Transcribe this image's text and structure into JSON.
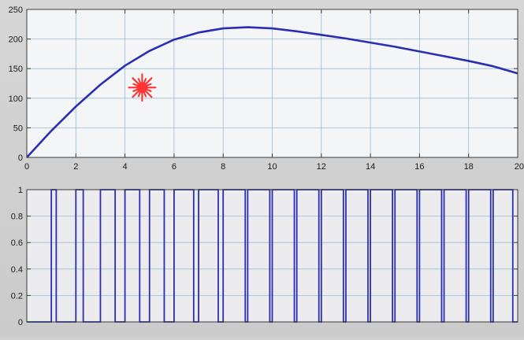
{
  "chart_data": [
    {
      "type": "line",
      "title": "",
      "xlabel": "",
      "ylabel": "",
      "xlim": [
        0,
        20
      ],
      "ylim": [
        0,
        250
      ],
      "grid": true,
      "x_ticks": [
        "0",
        "2",
        "4",
        "6",
        "8",
        "10",
        "12",
        "14",
        "16",
        "18",
        "20"
      ],
      "y_ticks": [
        "0",
        "50",
        "100",
        "150",
        "200",
        "250"
      ],
      "series": [
        {
          "color": "#2a2fb0",
          "x": [
            0,
            1,
            2,
            3,
            4,
            5,
            6,
            7,
            8,
            9,
            10,
            11,
            12,
            13,
            14,
            15,
            16,
            17,
            18,
            19,
            20
          ],
          "y": [
            0,
            45,
            86,
            123,
            155,
            180,
            199,
            211,
            218,
            220,
            218,
            213,
            207,
            201,
            194,
            187,
            179,
            171,
            163,
            154,
            142
          ]
        }
      ],
      "annotations": [
        {
          "kind": "star-marker",
          "color": "#ff2a2a",
          "x": 4.7,
          "y": 118
        }
      ]
    },
    {
      "type": "line",
      "title": "",
      "xlabel": "",
      "ylabel": "",
      "xlim": [
        0,
        20
      ],
      "ylim": [
        0,
        1
      ],
      "grid": true,
      "y_ticks": [
        "0",
        "0.2",
        "0.4",
        "0.6",
        "0.8",
        "1"
      ],
      "series": [
        {
          "color": "#2a2fb0",
          "step": true,
          "x": [
            0,
            1.0,
            1.0,
            1.2,
            1.2,
            2.0,
            2.0,
            2.3,
            2.3,
            3.0,
            3.0,
            3.6,
            3.6,
            4.0,
            4.0,
            4.6,
            4.6,
            5.0,
            5.0,
            5.6,
            5.6,
            6.0,
            6.0,
            6.8,
            6.8,
            7.0,
            7.0,
            7.8,
            7.8,
            8.0,
            8.0,
            8.9,
            8.9,
            9.0,
            9.0,
            9.9,
            9.9,
            10.0,
            10.0,
            10.9,
            10.9,
            11.0,
            11.0,
            11.9,
            11.9,
            12.0,
            12.0,
            12.9,
            12.9,
            13.0,
            13.0,
            13.9,
            13.9,
            14.0,
            14.0,
            14.9,
            14.9,
            15.0,
            15.0,
            15.9,
            15.9,
            16.0,
            16.0,
            16.9,
            16.9,
            17.0,
            17.0,
            17.9,
            17.9,
            18.0,
            18.0,
            18.9,
            18.9,
            19.0,
            19.0,
            19.8,
            19.8,
            20.0
          ],
          "y": [
            0,
            0,
            1,
            1,
            0,
            0,
            1,
            1,
            0,
            0,
            1,
            1,
            0,
            0,
            1,
            1,
            0,
            0,
            1,
            1,
            0,
            0,
            1,
            1,
            0,
            0,
            1,
            1,
            0,
            0,
            1,
            1,
            0,
            0,
            1,
            1,
            0,
            0,
            1,
            1,
            0,
            0,
            1,
            1,
            0,
            0,
            1,
            1,
            0,
            0,
            1,
            1,
            0,
            0,
            1,
            1,
            0,
            0,
            1,
            1,
            0,
            0,
            1,
            1,
            0,
            0,
            1,
            1,
            0,
            0,
            1,
            1,
            0,
            0,
            1,
            1,
            0,
            0
          ]
        }
      ]
    }
  ]
}
